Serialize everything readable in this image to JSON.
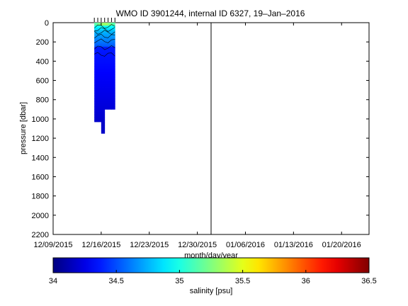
{
  "chart_data": {
    "type": "heatmap",
    "title": "WMO ID 3901244, internal ID 6327, 19–Jan–2016",
    "xlabel": "month/day/year",
    "ylabel": "pressure [dbar]",
    "x_ticks": [
      "12/09/2015",
      "12/16/2015",
      "12/23/2015",
      "12/30/2015",
      "01/06/2016",
      "01/13/2016",
      "01/20/2016"
    ],
    "y_ticks": [
      "0",
      "200",
      "400",
      "600",
      "800",
      "1000",
      "1200",
      "1400",
      "1600",
      "1800",
      "2000",
      "2200"
    ],
    "xlim": [
      "2015-12-09",
      "2016-01-24"
    ],
    "ylim": [
      0,
      2200
    ],
    "y_reversed": true,
    "reference_line_date": "2016-01-01",
    "profile_dates": [
      "2015-12-15",
      "2015-12-15.5",
      "2015-12-16",
      "2015-12-16.5",
      "2015-12-17",
      "2015-12-17.5",
      "2015-12-18"
    ],
    "profile_max_pressure": [
      1040,
      1030,
      1150,
      1160,
      900,
      920,
      900
    ],
    "profiles": [
      {
        "date": "2015-12-15",
        "max_pressure": 1040
      },
      {
        "date": "2015-12-15.5",
        "max_pressure": 1030
      },
      {
        "date": "2015-12-16",
        "max_pressure": 1150
      },
      {
        "date": "2015-12-16.5",
        "max_pressure": 1160
      },
      {
        "date": "2015-12-17",
        "max_pressure": 900
      },
      {
        "date": "2015-12-17.5",
        "max_pressure": 920
      },
      {
        "date": "2015-12-18",
        "max_pressure": 900
      }
    ],
    "colorbar": {
      "label": "salinity [psu]",
      "range": [
        34,
        36.5
      ],
      "ticks": [
        "34",
        "34.5",
        "35",
        "35.5",
        "36",
        "36.5"
      ],
      "colormap": "jet"
    }
  }
}
